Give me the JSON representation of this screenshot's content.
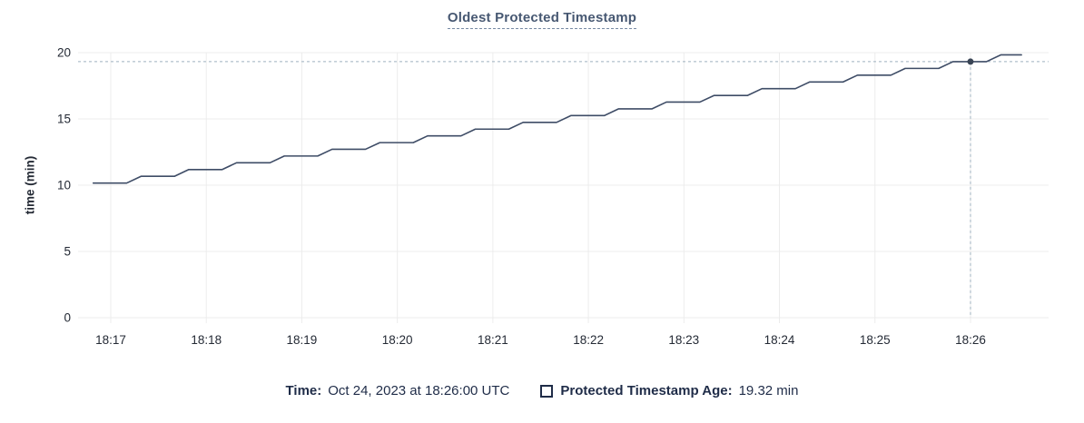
{
  "title": {
    "text": "Oldest Protected Timestamp"
  },
  "colors": {
    "title": "#475872",
    "line": "#3E4C66",
    "dot": "#394455",
    "crosshair": "#9FB1BF",
    "grid": "#ECECEC",
    "tick_text": "#242A35",
    "legend_text": "#1F2C48"
  },
  "legend": {
    "time_label": "Time:",
    "time_value": "Oct 24, 2023 at 18:26:00 UTC",
    "series_label": "Protected Timestamp Age:",
    "series_value": "19.32 min"
  },
  "chart_data": {
    "type": "line",
    "title": "Oldest Protected Timestamp",
    "xlabel": "",
    "ylabel": "time (min)",
    "ylim": [
      0,
      20
    ],
    "yticks": [
      0,
      5,
      10,
      15,
      20
    ],
    "x_unit": "seconds after 18:17:00 UTC",
    "xticks": [
      {
        "t": 0,
        "label": "18:17"
      },
      {
        "t": 60,
        "label": "18:18"
      },
      {
        "t": 120,
        "label": "18:19"
      },
      {
        "t": 180,
        "label": "18:20"
      },
      {
        "t": 240,
        "label": "18:21"
      },
      {
        "t": 300,
        "label": "18:22"
      },
      {
        "t": 360,
        "label": "18:23"
      },
      {
        "t": 420,
        "label": "18:24"
      },
      {
        "t": 480,
        "label": "18:25"
      },
      {
        "t": 540,
        "label": "18:26"
      }
    ],
    "grid": true,
    "legend_position": "bottom",
    "crosshair": {
      "t": 540,
      "value": 19.32,
      "time_label": "Oct 24, 2023 at 18:26:00 UTC"
    },
    "series": [
      {
        "name": "Protected Timestamp Age",
        "unit": "min",
        "points": [
          [
            -11,
            10.16
          ],
          [
            10,
            10.16
          ],
          [
            19,
            10.67
          ],
          [
            40,
            10.67
          ],
          [
            49,
            11.18
          ],
          [
            70,
            11.18
          ],
          [
            79,
            11.69
          ],
          [
            100,
            11.69
          ],
          [
            109,
            12.2
          ],
          [
            130,
            12.2
          ],
          [
            139,
            12.71
          ],
          [
            160,
            12.71
          ],
          [
            169,
            13.21
          ],
          [
            190,
            13.21
          ],
          [
            199,
            13.72
          ],
          [
            220,
            13.72
          ],
          [
            229,
            14.23
          ],
          [
            250,
            14.23
          ],
          [
            259,
            14.74
          ],
          [
            280,
            14.74
          ],
          [
            289,
            15.25
          ],
          [
            310,
            15.25
          ],
          [
            319,
            15.76
          ],
          [
            340,
            15.76
          ],
          [
            349,
            16.27
          ],
          [
            370,
            16.27
          ],
          [
            379,
            16.77
          ],
          [
            400,
            16.77
          ],
          [
            409,
            17.28
          ],
          [
            430,
            17.28
          ],
          [
            439,
            17.79
          ],
          [
            460,
            17.79
          ],
          [
            469,
            18.3
          ],
          [
            490,
            18.3
          ],
          [
            499,
            18.81
          ],
          [
            520,
            18.81
          ],
          [
            529,
            19.32
          ],
          [
            550,
            19.32
          ],
          [
            559,
            19.83
          ],
          [
            572,
            19.83
          ]
        ]
      }
    ]
  }
}
